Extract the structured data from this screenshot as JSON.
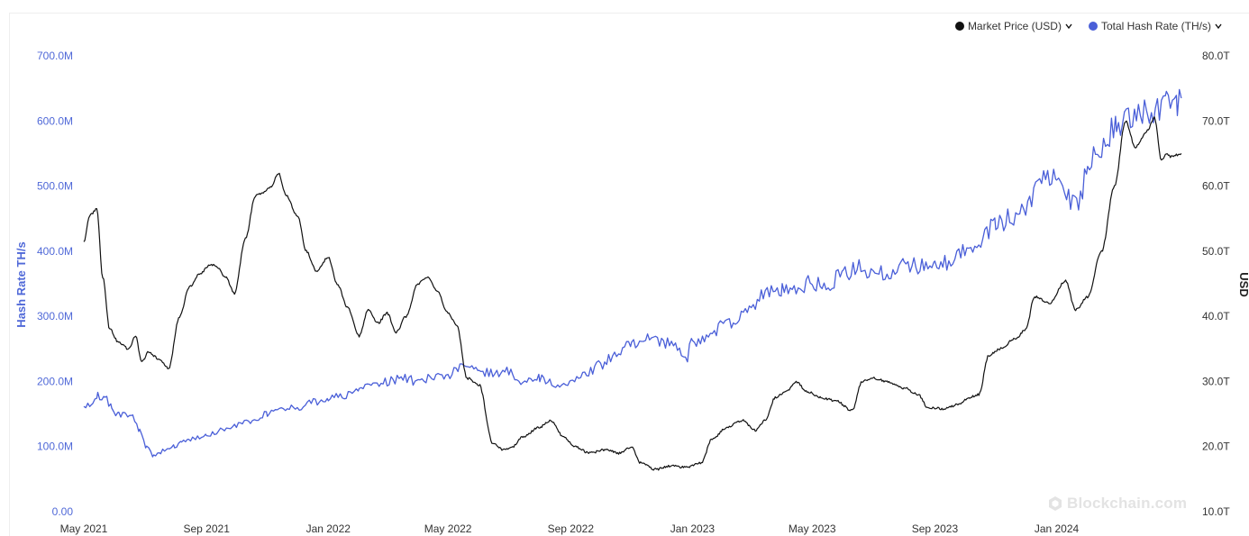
{
  "legend": {
    "market_price": "Market Price (USD)",
    "hash_rate": "Total Hash Rate (TH/s)"
  },
  "watermark": "Blockchain.com",
  "colors": {
    "hash_rate": "#4a5fd8",
    "market_price": "#111111",
    "left_axis_text": "#5069d8"
  },
  "chart_data": {
    "type": "line",
    "x_tick_labels": [
      "May 2021",
      "Sep 2021",
      "Jan 2022",
      "May 2022",
      "Sep 2022",
      "Jan 2023",
      "May 2023",
      "Sep 2023",
      "Jan 2024"
    ],
    "left_axis": {
      "label": "Hash Rate TH/s",
      "ticks": [
        "0.00",
        "100.0M",
        "200.0M",
        "300.0M",
        "400.0M",
        "500.0M",
        "600.0M",
        "700.0M"
      ],
      "ylim": [
        0,
        700000000
      ]
    },
    "right_axis": {
      "label": "USD",
      "ticks": [
        "10.0T",
        "20.0T",
        "30.0T",
        "40.0T",
        "50.0T",
        "60.0T",
        "70.0T",
        "80.0T"
      ],
      "ylim": [
        10,
        80
      ]
    },
    "xlim": [
      "2021-05-01",
      "2024-05-15"
    ],
    "grid": false,
    "legend_position": "top-right",
    "series": [
      {
        "name": "Total Hash Rate (TH/s)",
        "axis": "left",
        "points": [
          [
            "2021-05-01",
            158000000
          ],
          [
            "2021-05-08",
            165000000
          ],
          [
            "2021-05-15",
            178000000
          ],
          [
            "2021-05-22",
            176000000
          ],
          [
            "2021-05-29",
            160000000
          ],
          [
            "2021-06-05",
            148000000
          ],
          [
            "2021-06-12",
            150000000
          ],
          [
            "2021-06-19",
            145000000
          ],
          [
            "2021-06-26",
            125000000
          ],
          [
            "2021-07-03",
            100000000
          ],
          [
            "2021-07-10",
            85000000
          ],
          [
            "2021-07-17",
            92000000
          ],
          [
            "2021-07-24",
            98000000
          ],
          [
            "2021-07-31",
            100000000
          ],
          [
            "2021-08-07",
            106000000
          ],
          [
            "2021-08-14",
            110000000
          ],
          [
            "2021-08-21",
            112000000
          ],
          [
            "2021-09-01",
            118000000
          ],
          [
            "2021-09-15",
            124000000
          ],
          [
            "2021-10-01",
            132000000
          ],
          [
            "2021-10-15",
            138000000
          ],
          [
            "2021-11-01",
            150000000
          ],
          [
            "2021-11-15",
            160000000
          ],
          [
            "2021-12-01",
            160000000
          ],
          [
            "2021-12-15",
            168000000
          ],
          [
            "2022-01-01",
            172000000
          ],
          [
            "2022-01-15",
            178000000
          ],
          [
            "2022-02-01",
            188000000
          ],
          [
            "2022-02-15",
            195000000
          ],
          [
            "2022-03-01",
            200000000
          ],
          [
            "2022-03-15",
            205000000
          ],
          [
            "2022-04-01",
            200000000
          ],
          [
            "2022-04-15",
            205000000
          ],
          [
            "2022-05-01",
            210000000
          ],
          [
            "2022-05-15",
            222000000
          ],
          [
            "2022-06-01",
            215000000
          ],
          [
            "2022-06-15",
            212000000
          ],
          [
            "2022-07-01",
            215000000
          ],
          [
            "2022-07-15",
            200000000
          ],
          [
            "2022-08-01",
            205000000
          ],
          [
            "2022-08-15",
            195000000
          ],
          [
            "2022-09-01",
            200000000
          ],
          [
            "2022-09-15",
            210000000
          ],
          [
            "2022-10-01",
            225000000
          ],
          [
            "2022-10-15",
            240000000
          ],
          [
            "2022-11-01",
            258000000
          ],
          [
            "2022-11-15",
            265000000
          ],
          [
            "2022-12-01",
            262000000
          ],
          [
            "2022-12-15",
            252000000
          ],
          [
            "2022-12-25",
            232000000
          ],
          [
            "2023-01-01",
            260000000
          ],
          [
            "2023-01-15",
            265000000
          ],
          [
            "2023-02-01",
            285000000
          ],
          [
            "2023-02-15",
            295000000
          ],
          [
            "2023-03-01",
            315000000
          ],
          [
            "2023-03-15",
            335000000
          ],
          [
            "2023-04-01",
            340000000
          ],
          [
            "2023-04-15",
            345000000
          ],
          [
            "2023-05-01",
            352000000
          ],
          [
            "2023-05-15",
            345000000
          ],
          [
            "2023-06-01",
            365000000
          ],
          [
            "2023-06-15",
            375000000
          ],
          [
            "2023-07-01",
            368000000
          ],
          [
            "2023-07-15",
            365000000
          ],
          [
            "2023-08-01",
            385000000
          ],
          [
            "2023-08-15",
            375000000
          ],
          [
            "2023-09-01",
            385000000
          ],
          [
            "2023-09-15",
            380000000
          ],
          [
            "2023-10-01",
            400000000
          ],
          [
            "2023-10-15",
            415000000
          ],
          [
            "2023-11-01",
            440000000
          ],
          [
            "2023-11-15",
            450000000
          ],
          [
            "2023-12-01",
            470000000
          ],
          [
            "2023-12-15",
            505000000
          ],
          [
            "2024-01-01",
            515000000
          ],
          [
            "2024-01-15",
            480000000
          ],
          [
            "2024-01-25",
            480000000
          ],
          [
            "2024-02-01",
            540000000
          ],
          [
            "2024-02-15",
            560000000
          ],
          [
            "2024-03-01",
            595000000
          ],
          [
            "2024-03-15",
            610000000
          ],
          [
            "2024-04-01",
            615000000
          ],
          [
            "2024-04-15",
            615000000
          ],
          [
            "2024-04-20",
            640000000
          ],
          [
            "2024-05-01",
            630000000
          ],
          [
            "2024-05-05",
            635000000
          ]
        ]
      },
      {
        "name": "Market Price (USD)",
        "axis": "right",
        "points": [
          [
            "2021-05-01",
            51.5
          ],
          [
            "2021-05-07",
            55.5
          ],
          [
            "2021-05-14",
            56.5
          ],
          [
            "2021-05-20",
            46.0
          ],
          [
            "2021-05-27",
            38.0
          ],
          [
            "2021-06-05",
            36.0
          ],
          [
            "2021-06-15",
            35.0
          ],
          [
            "2021-06-22",
            37.0
          ],
          [
            "2021-06-28",
            33.0
          ],
          [
            "2021-07-05",
            34.5
          ],
          [
            "2021-07-15",
            33.5
          ],
          [
            "2021-07-25",
            32.0
          ],
          [
            "2021-08-05",
            40.0
          ],
          [
            "2021-08-15",
            44.5
          ],
          [
            "2021-08-25",
            46.5
          ],
          [
            "2021-09-05",
            48.0
          ],
          [
            "2021-09-12",
            47.5
          ],
          [
            "2021-09-20",
            46.0
          ],
          [
            "2021-09-29",
            43.5
          ],
          [
            "2021-10-10",
            52.0
          ],
          [
            "2021-10-20",
            58.5
          ],
          [
            "2021-10-28",
            59.0
          ],
          [
            "2021-11-05",
            60.0
          ],
          [
            "2021-11-12",
            62.0
          ],
          [
            "2021-11-20",
            58.5
          ],
          [
            "2021-12-01",
            55.5
          ],
          [
            "2021-12-10",
            50.0
          ],
          [
            "2021-12-20",
            47.0
          ],
          [
            "2022-01-01",
            49.0
          ],
          [
            "2022-01-10",
            45.0
          ],
          [
            "2022-01-20",
            41.5
          ],
          [
            "2022-02-01",
            37.0
          ],
          [
            "2022-02-10",
            41.0
          ],
          [
            "2022-02-20",
            39.0
          ],
          [
            "2022-03-01",
            40.5
          ],
          [
            "2022-03-10",
            37.5
          ],
          [
            "2022-03-20",
            40.0
          ],
          [
            "2022-04-01",
            45.0
          ],
          [
            "2022-04-10",
            46.0
          ],
          [
            "2022-04-20",
            44.0
          ],
          [
            "2022-05-01",
            40.5
          ],
          [
            "2022-05-10",
            38.5
          ],
          [
            "2022-05-20",
            30.5
          ],
          [
            "2022-06-01",
            29.5
          ],
          [
            "2022-06-15",
            20.5
          ],
          [
            "2022-06-25",
            19.5
          ],
          [
            "2022-07-05",
            20.0
          ],
          [
            "2022-07-15",
            21.5
          ],
          [
            "2022-08-01",
            23.0
          ],
          [
            "2022-08-12",
            24.0
          ],
          [
            "2022-08-25",
            21.5
          ],
          [
            "2022-09-05",
            20.0
          ],
          [
            "2022-09-20",
            19.0
          ],
          [
            "2022-10-05",
            19.5
          ],
          [
            "2022-10-20",
            19.0
          ],
          [
            "2022-11-01",
            20.0
          ],
          [
            "2022-11-10",
            17.5
          ],
          [
            "2022-11-25",
            16.5
          ],
          [
            "2022-12-10",
            17.0
          ],
          [
            "2022-12-25",
            16.8
          ],
          [
            "2023-01-10",
            17.5
          ],
          [
            "2023-01-20",
            21.0
          ],
          [
            "2023-02-05",
            23.0
          ],
          [
            "2023-02-20",
            24.0
          ],
          [
            "2023-03-05",
            22.5
          ],
          [
            "2023-03-15",
            24.0
          ],
          [
            "2023-03-25",
            27.5
          ],
          [
            "2023-04-05",
            28.5
          ],
          [
            "2023-04-15",
            30.0
          ],
          [
            "2023-04-25",
            28.5
          ],
          [
            "2023-05-10",
            27.5
          ],
          [
            "2023-05-25",
            27.0
          ],
          [
            "2023-06-10",
            25.5
          ],
          [
            "2023-06-20",
            30.0
          ],
          [
            "2023-07-01",
            30.5
          ],
          [
            "2023-07-15",
            30.0
          ],
          [
            "2023-08-01",
            29.0
          ],
          [
            "2023-08-15",
            28.0
          ],
          [
            "2023-08-25",
            26.0
          ],
          [
            "2023-09-10",
            25.8
          ],
          [
            "2023-09-25",
            26.5
          ],
          [
            "2023-10-05",
            27.5
          ],
          [
            "2023-10-15",
            28.0
          ],
          [
            "2023-10-25",
            34.0
          ],
          [
            "2023-11-05",
            35.0
          ],
          [
            "2023-11-20",
            36.5
          ],
          [
            "2023-12-01",
            38.0
          ],
          [
            "2023-12-10",
            43.0
          ],
          [
            "2023-12-25",
            42.0
          ],
          [
            "2024-01-10",
            45.5
          ],
          [
            "2024-01-20",
            41.0
          ],
          [
            "2024-02-01",
            43.0
          ],
          [
            "2024-02-15",
            50.0
          ],
          [
            "2024-02-28",
            60.0
          ],
          [
            "2024-03-10",
            70.0
          ],
          [
            "2024-03-20",
            66.0
          ],
          [
            "2024-04-01",
            68.5
          ],
          [
            "2024-04-08",
            70.5
          ],
          [
            "2024-04-15",
            64.0
          ],
          [
            "2024-04-20",
            65.0
          ],
          [
            "2024-04-25",
            64.5
          ],
          [
            "2024-05-05",
            65.0
          ]
        ]
      }
    ]
  }
}
